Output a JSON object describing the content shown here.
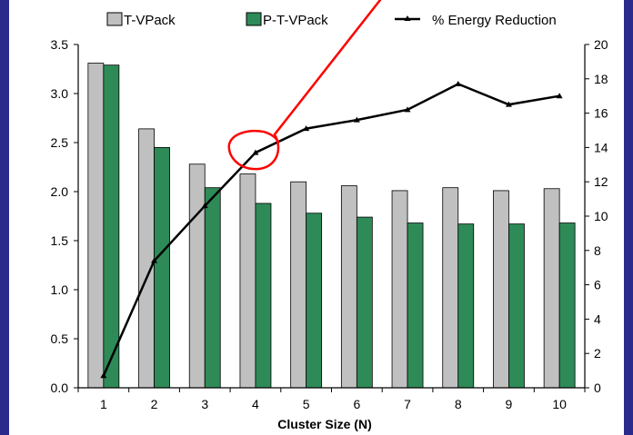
{
  "colors": {
    "frame": "#2a2a8c",
    "background": "#ffffff",
    "series_tvpack": "#c0c0c0",
    "series_ptvpack": "#2e8b57",
    "line": "#000000",
    "annotation": "#ff0000"
  },
  "chart_data": {
    "type": "bar",
    "title": "",
    "xlabel": "Cluster Size (N)",
    "ylabel": "",
    "ylabel_right": "",
    "categories": [
      "1",
      "2",
      "3",
      "4",
      "5",
      "6",
      "7",
      "8",
      "9",
      "10"
    ],
    "ylim": [
      0,
      3.5
    ],
    "ylim_right": [
      0,
      20
    ],
    "yticks": [
      "0.0",
      "0.5",
      "1.0",
      "1.5",
      "2.0",
      "2.5",
      "3.0",
      "3.5"
    ],
    "yticks_right": [
      "0",
      "2",
      "4",
      "6",
      "8",
      "10",
      "12",
      "14",
      "16",
      "18",
      "20"
    ],
    "legend_position": "top",
    "grid": false,
    "series": [
      {
        "name": "T-VPack",
        "type": "bar",
        "axis": "left",
        "values": [
          3.31,
          2.64,
          2.28,
          2.18,
          2.1,
          2.06,
          2.01,
          2.04,
          2.01,
          2.03
        ]
      },
      {
        "name": "P-T-VPack",
        "type": "bar",
        "axis": "left",
        "values": [
          3.29,
          2.45,
          2.04,
          1.88,
          1.78,
          1.74,
          1.68,
          1.67,
          1.67,
          1.68
        ]
      },
      {
        "name": "% Energy Reduction",
        "type": "line",
        "axis": "right",
        "values": [
          0.7,
          7.4,
          10.6,
          13.7,
          15.1,
          15.6,
          16.2,
          17.7,
          16.5,
          17.0
        ]
      }
    ],
    "annotation": "red hand-drawn circle around the line point at cluster size 4, with a pointer line running up to the top edge"
  }
}
